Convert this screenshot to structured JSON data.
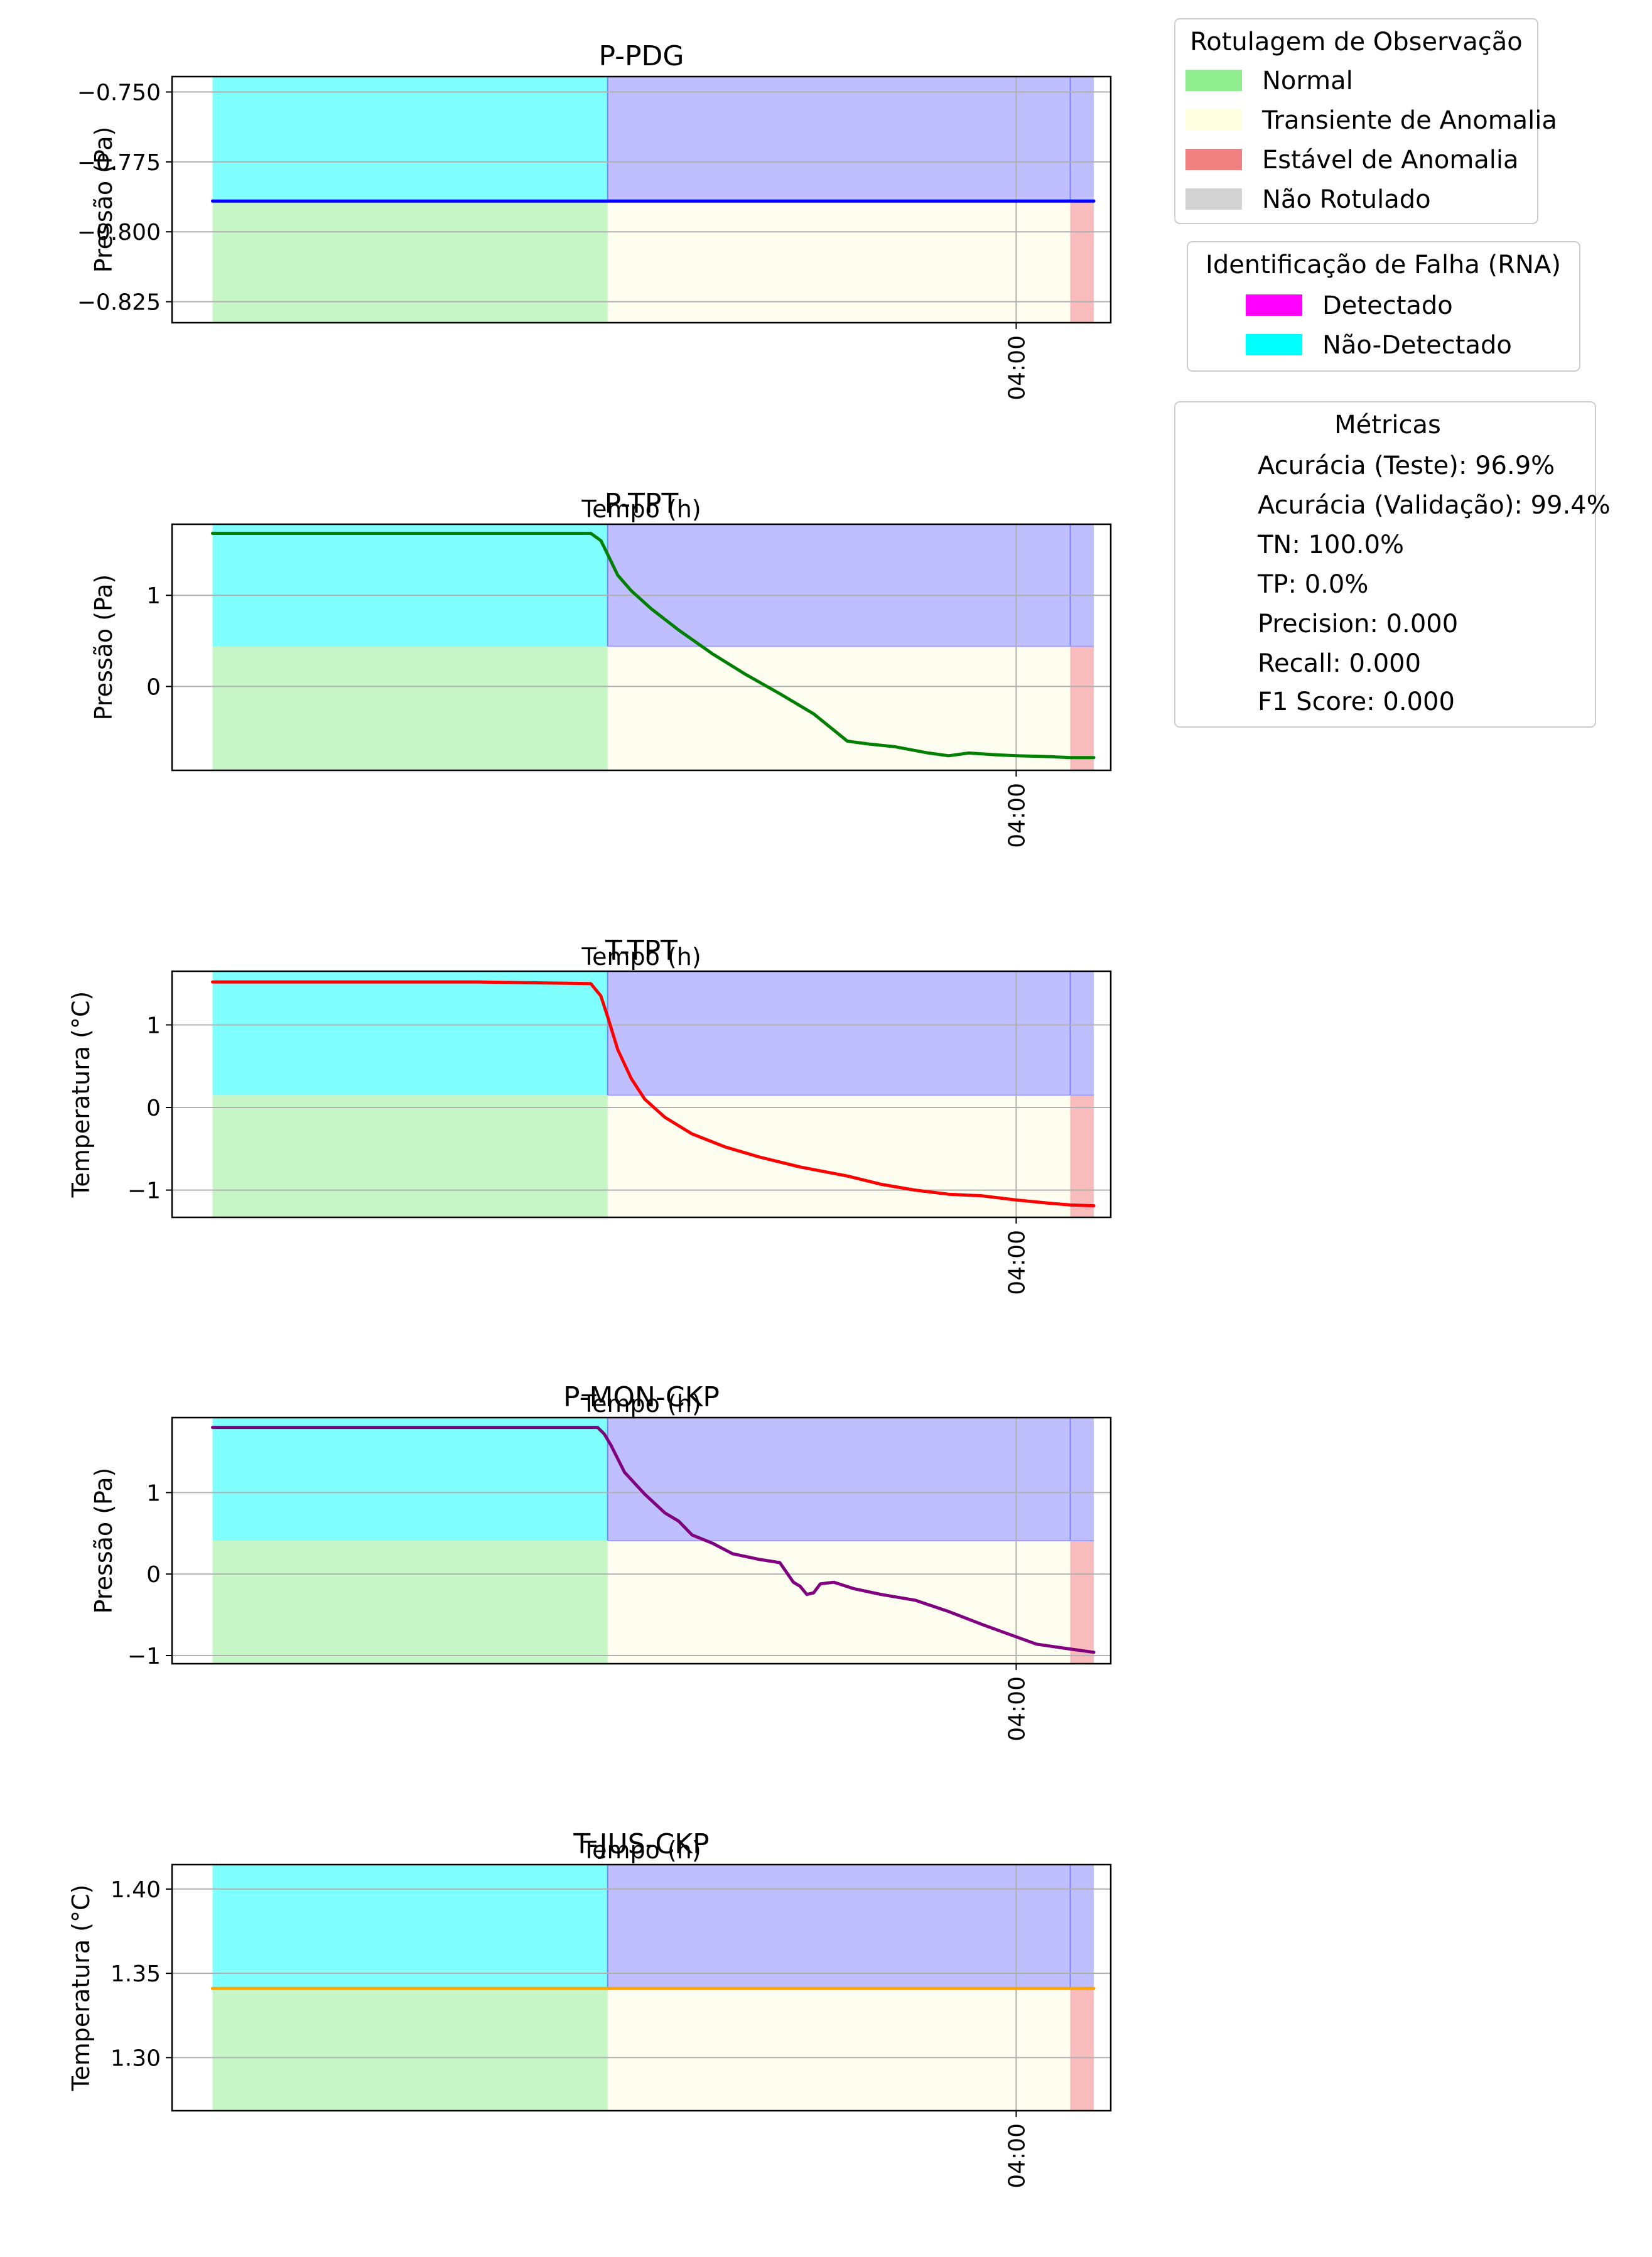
{
  "legend_observation": {
    "title": "Rotulagem de Observação",
    "items": [
      {
        "label": "Normal",
        "color": "#90ee90"
      },
      {
        "label": "Transiente de Anomalia",
        "color": "#ffffe0"
      },
      {
        "label": "Estável de Anomalia",
        "color": "#f08080"
      },
      {
        "label": "Não Rotulado",
        "color": "#d3d3d3"
      }
    ]
  },
  "legend_fault": {
    "title": "Identificação de Falha (RNA)",
    "items": [
      {
        "label": "Detectado",
        "color": "#ff00ff"
      },
      {
        "label": "Não-Detectado",
        "color": "#00ffff"
      }
    ]
  },
  "metrics": {
    "title": "Métricas",
    "lines": [
      "Acurácia (Teste): 96.9%",
      "Acurácia (Validação): 99.4%",
      "TN: 100.0%",
      "TP: 0.0%",
      "Precision: 0.000",
      "Recall: 0.000",
      "F1 Score: 0.000"
    ]
  },
  "colors": {
    "normal_band": "#c6f5c6",
    "transient_band": "#fefef0",
    "stable_band": "#f8bcbc",
    "not_detected_band": "#80ffff",
    "detected_band": "#bfbfff"
  },
  "chart_data": [
    {
      "type": "line",
      "title": "P-PDG",
      "xlabel": "Tempo (h)",
      "ylabel": "Pressão (Pa)",
      "line_color": "#0000ff",
      "grid": true,
      "xlim": [
        2.75,
        4.14
      ],
      "ylim": [
        -0.8325,
        -0.7445
      ],
      "yticks": [
        -0.825,
        -0.8,
        -0.775,
        -0.75
      ],
      "ytick_labels": [
        "−0.825",
        "−0.800",
        "−0.775",
        "−0.750"
      ],
      "xtick": {
        "value": 4.0,
        "label": "04:00"
      },
      "regions": {
        "start": 2.81,
        "normal_end": 3.395,
        "stable_start": 4.08,
        "end": 4.115
      },
      "split_value": -0.789,
      "x": [
        2.81,
        4.115
      ],
      "y": [
        -0.789,
        -0.789
      ]
    },
    {
      "type": "line",
      "title": "P-TPT",
      "xlabel": "Tempo (h)",
      "ylabel": "Pressão (Pa)",
      "line_color": "#008000",
      "grid": true,
      "xlim": [
        2.75,
        4.14
      ],
      "ylim": [
        -0.92,
        1.78
      ],
      "yticks": [
        0,
        1
      ],
      "ytick_labels": [
        "0",
        "1"
      ],
      "xtick": {
        "value": 4.0,
        "label": "04:00"
      },
      "regions": {
        "start": 2.81,
        "normal_end": 3.395,
        "stable_start": 4.08,
        "end": 4.115
      },
      "split_value": 0.44,
      "x": [
        2.81,
        3.3,
        3.37,
        3.385,
        3.395,
        3.41,
        3.43,
        3.46,
        3.5,
        3.55,
        3.6,
        3.65,
        3.7,
        3.75,
        3.78,
        3.82,
        3.87,
        3.9,
        3.93,
        3.97,
        4.0,
        4.05,
        4.08,
        4.115
      ],
      "y": [
        1.68,
        1.68,
        1.68,
        1.6,
        1.45,
        1.22,
        1.05,
        0.85,
        0.62,
        0.36,
        0.13,
        -0.08,
        -0.3,
        -0.6,
        -0.63,
        -0.66,
        -0.73,
        -0.76,
        -0.73,
        -0.75,
        -0.76,
        -0.77,
        -0.78,
        -0.78
      ]
    },
    {
      "type": "line",
      "title": "T-TPT",
      "xlabel": "Tempo (h)",
      "ylabel": "Temperatura (°C)",
      "line_color": "#ff0000",
      "grid": true,
      "xlim": [
        2.75,
        4.14
      ],
      "ylim": [
        -1.33,
        1.65
      ],
      "yticks": [
        -1,
        0,
        1
      ],
      "ytick_labels": [
        "−1",
        "0",
        "1"
      ],
      "xtick": {
        "value": 4.0,
        "label": "04:00"
      },
      "regions": {
        "start": 2.81,
        "normal_end": 3.395,
        "stable_start": 4.08,
        "end": 4.115
      },
      "split_value": 0.15,
      "x": [
        2.81,
        3.2,
        3.37,
        3.385,
        3.395,
        3.41,
        3.43,
        3.45,
        3.48,
        3.52,
        3.57,
        3.62,
        3.68,
        3.75,
        3.8,
        3.85,
        3.9,
        3.95,
        4.0,
        4.05,
        4.08,
        4.115
      ],
      "y": [
        1.52,
        1.52,
        1.5,
        1.35,
        1.1,
        0.7,
        0.35,
        0.1,
        -0.12,
        -0.32,
        -0.48,
        -0.6,
        -0.72,
        -0.83,
        -0.93,
        -1.0,
        -1.05,
        -1.07,
        -1.12,
        -1.16,
        -1.18,
        -1.19
      ]
    },
    {
      "type": "line",
      "title": "P-MON-CKP",
      "xlabel": "Tempo (h)",
      "ylabel": "Pressão (Pa)",
      "line_color": "#800080",
      "grid": true,
      "xlim": [
        2.75,
        4.14
      ],
      "ylim": [
        -1.1,
        1.92
      ],
      "yticks": [
        -1,
        0,
        1
      ],
      "ytick_labels": [
        "−1",
        "0",
        "1"
      ],
      "xtick": {
        "value": 4.0,
        "label": "04:00"
      },
      "regions": {
        "start": 2.81,
        "normal_end": 3.395,
        "stable_start": 4.08,
        "end": 4.115
      },
      "split_value": 0.41,
      "x": [
        2.81,
        3.38,
        3.39,
        3.4,
        3.42,
        3.45,
        3.48,
        3.5,
        3.52,
        3.55,
        3.58,
        3.62,
        3.65,
        3.67,
        3.68,
        3.69,
        3.7,
        3.71,
        3.73,
        3.76,
        3.8,
        3.85,
        3.9,
        3.95,
        4.0,
        4.03,
        4.08,
        4.115
      ],
      "y": [
        1.8,
        1.8,
        1.72,
        1.58,
        1.25,
        0.98,
        0.75,
        0.65,
        0.48,
        0.38,
        0.25,
        0.18,
        0.14,
        -0.1,
        -0.15,
        -0.25,
        -0.23,
        -0.12,
        -0.1,
        -0.18,
        -0.25,
        -0.32,
        -0.46,
        -0.62,
        -0.77,
        -0.86,
        -0.92,
        -0.96
      ]
    },
    {
      "type": "line",
      "title": "T-JUS-CKP",
      "xlabel": "Tempo (h)",
      "ylabel": "Temperatura (°C)",
      "line_color": "#ffa500",
      "grid": true,
      "xlim": [
        2.75,
        4.14
      ],
      "ylim": [
        1.2685,
        1.4145
      ],
      "yticks": [
        1.3,
        1.35,
        1.4
      ],
      "ytick_labels": [
        "1.30",
        "1.35",
        "1.40"
      ],
      "xtick": {
        "value": 4.0,
        "label": "04:00"
      },
      "regions": {
        "start": 2.81,
        "normal_end": 3.395,
        "stable_start": 4.08,
        "end": 4.115
      },
      "split_value": 1.341,
      "x": [
        2.81,
        4.115
      ],
      "y": [
        1.341,
        1.341
      ]
    }
  ]
}
